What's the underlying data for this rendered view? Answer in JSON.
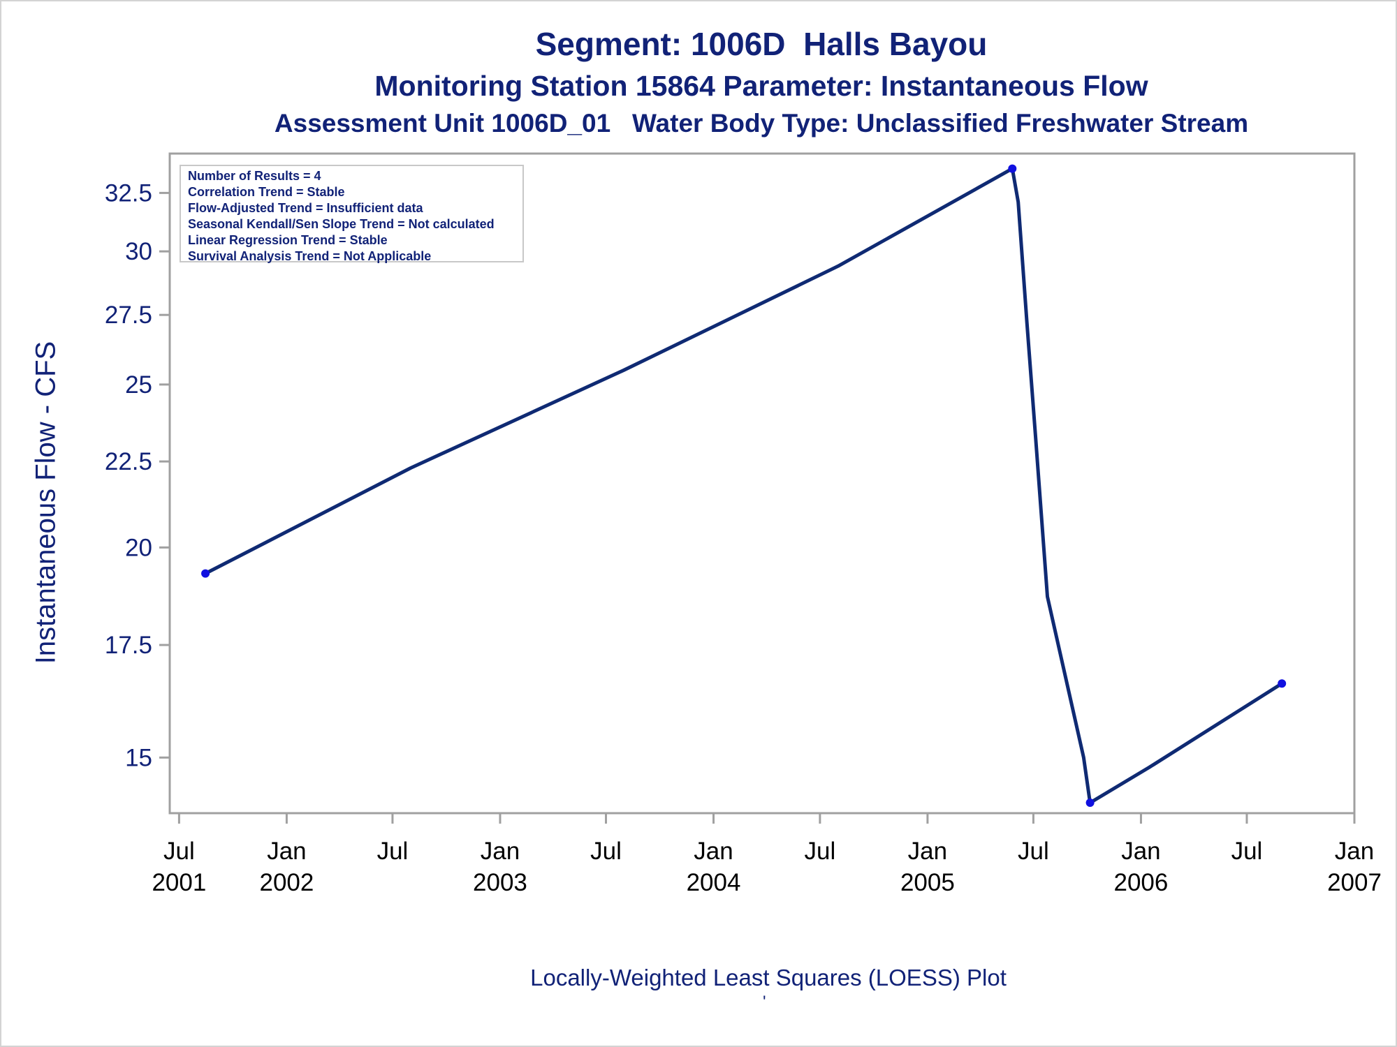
{
  "chart_data": {
    "type": "line",
    "title": "Segment: 1006D  Halls Bayou",
    "subtitle": "Monitoring Station 15864 Parameter: Instantaneous Flow",
    "subtitle2": "Assessment Unit 1006D_01   Water Body Type: Unclassified Freshwater Stream",
    "ylabel": "Instantaneous Flow - CFS",
    "xlabel": "",
    "footnote": "Locally-Weighted Least Squares (LOESS) Plot",
    "footnote_mark": "'",
    "y_scale": "log",
    "ylim": [
      13.9,
      34.3
    ],
    "xlim": [
      "2001-06-15",
      "2007-01-01"
    ],
    "y_ticks": [
      {
        "value": 15,
        "label": "15"
      },
      {
        "value": 17.5,
        "label": "17.5"
      },
      {
        "value": 20,
        "label": "20"
      },
      {
        "value": 22.5,
        "label": "22.5"
      },
      {
        "value": 25,
        "label": "25"
      },
      {
        "value": 27.5,
        "label": "27.5"
      },
      {
        "value": 30,
        "label": "30"
      },
      {
        "value": 32.5,
        "label": "32.5"
      }
    ],
    "x_ticks": [
      {
        "date": "2001-07-01",
        "label": [
          "Jul",
          "2001"
        ]
      },
      {
        "date": "2002-01-01",
        "label": [
          "Jan",
          "2002"
        ]
      },
      {
        "date": "2002-07-01",
        "label": [
          "Jul",
          ""
        ]
      },
      {
        "date": "2003-01-01",
        "label": [
          "Jan",
          "2003"
        ]
      },
      {
        "date": "2003-07-01",
        "label": [
          "Jul",
          ""
        ]
      },
      {
        "date": "2004-01-01",
        "label": [
          "Jan",
          "2004"
        ]
      },
      {
        "date": "2004-07-01",
        "label": [
          "Jul",
          ""
        ]
      },
      {
        "date": "2005-01-01",
        "label": [
          "Jan",
          "2005"
        ]
      },
      {
        "date": "2005-07-01",
        "label": [
          "Jul",
          ""
        ]
      },
      {
        "date": "2006-01-01",
        "label": [
          "Jan",
          "2006"
        ]
      },
      {
        "date": "2006-07-01",
        "label": [
          "Jul",
          ""
        ]
      },
      {
        "date": "2007-01-01",
        "label": [
          "Jan",
          "2007"
        ]
      }
    ],
    "observations": [
      {
        "date": "2001-08-15",
        "value": 19.3
      },
      {
        "date": "2005-05-26",
        "value": 33.6
      },
      {
        "date": "2005-10-06",
        "value": 14.1
      },
      {
        "date": "2006-08-30",
        "value": 16.6
      }
    ],
    "loess_curve": [
      {
        "date": "2001-08-15",
        "value": 19.3
      },
      {
        "date": "2002-08-01",
        "value": 22.3
      },
      {
        "date": "2003-08-01",
        "value": 25.5
      },
      {
        "date": "2004-08-01",
        "value": 29.4
      },
      {
        "date": "2005-05-26",
        "value": 33.6
      },
      {
        "date": "2005-06-05",
        "value": 32.1
      },
      {
        "date": "2005-06-20",
        "value": 27.2
      },
      {
        "date": "2005-07-05",
        "value": 23.2
      },
      {
        "date": "2005-07-25",
        "value": 18.7
      },
      {
        "date": "2005-09-25",
        "value": 15.0
      },
      {
        "date": "2005-10-06",
        "value": 14.1
      },
      {
        "date": "2006-01-15",
        "value": 14.8
      },
      {
        "date": "2006-08-30",
        "value": 16.6
      }
    ],
    "colors": {
      "line": "#0f2a73",
      "marker": "#1010e0",
      "axis": "#a0a0a0",
      "text": "#112277",
      "tick_label": "#000000"
    },
    "stats_box": [
      "Number of Results = 4",
      "Correlation Trend = Stable",
      "Flow-Adjusted Trend = Insufficient data",
      "Seasonal Kendall/Sen Slope Trend = Not calculated",
      "Linear Regression Trend = Stable",
      "Survival Analysis Trend = Not Applicable"
    ],
    "legend_placement": "top-left"
  }
}
